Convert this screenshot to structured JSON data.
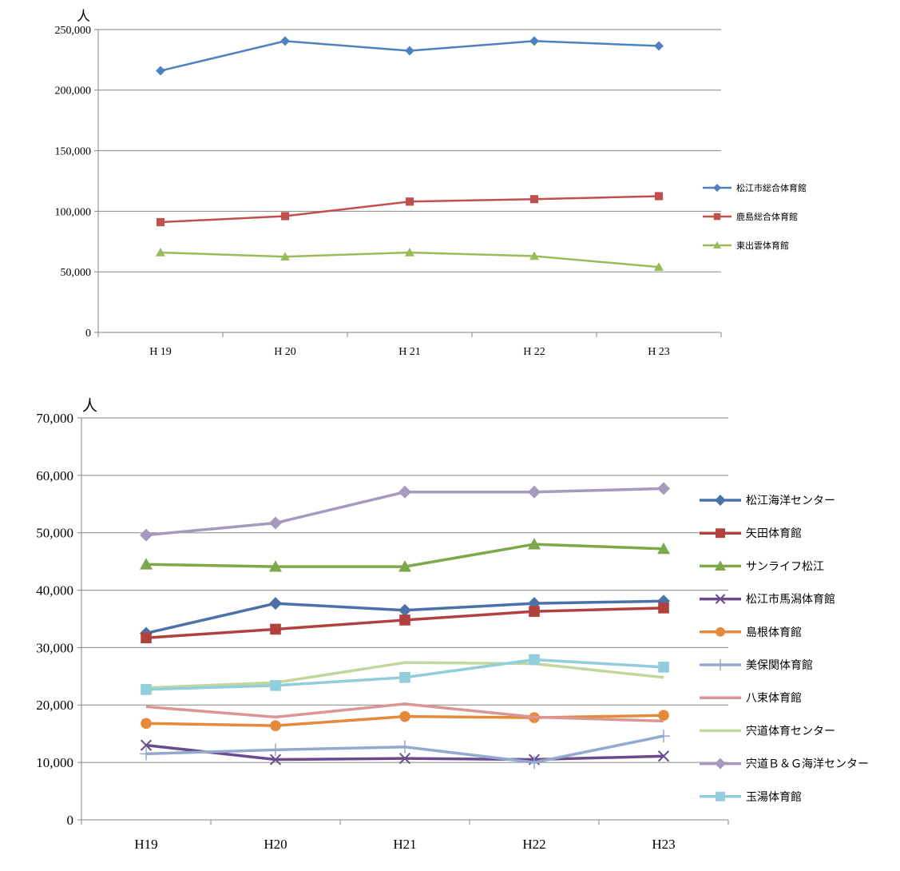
{
  "chart_data": [
    {
      "type": "line",
      "unit_label": "人",
      "categories": [
        "H19",
        "H20",
        "H21",
        "H22",
        "H23"
      ],
      "tick_labels": [
        "H 19",
        "H 20",
        "H 21",
        "H 22",
        "H 23"
      ],
      "ylim": [
        0,
        250000
      ],
      "yticks": [
        0,
        50000,
        100000,
        150000,
        200000,
        250000
      ],
      "ytick_labels": [
        "0",
        "50,000",
        "100,000",
        "150,000",
        "200,000",
        "250,000"
      ],
      "grid": true,
      "legend_position": "right",
      "series": [
        {
          "name": "松江市総合体育館",
          "color": "#4f81bd",
          "marker": "diamond",
          "values": [
            216000,
            240500,
            232500,
            240500,
            236500
          ]
        },
        {
          "name": "鹿島総合体育館",
          "color": "#c0504d",
          "marker": "square",
          "values": [
            91000,
            96000,
            108000,
            110000,
            112500
          ]
        },
        {
          "name": "東出雲体育館",
          "color": "#9bbb59",
          "marker": "triangle",
          "values": [
            66000,
            62500,
            66000,
            63000,
            54000
          ]
        }
      ]
    },
    {
      "type": "line",
      "unit_label": "人",
      "categories": [
        "H19",
        "H20",
        "H21",
        "H22",
        "H23"
      ],
      "tick_labels": [
        "H19",
        "H20",
        "H21",
        "H22",
        "H23"
      ],
      "ylim": [
        0,
        70000
      ],
      "yticks": [
        0,
        10000,
        20000,
        30000,
        40000,
        50000,
        60000,
        70000
      ],
      "ytick_labels": [
        "0",
        "10,000",
        "20,000",
        "30,000",
        "40,000",
        "50,000",
        "60,000",
        "70,000"
      ],
      "grid": true,
      "legend_position": "right",
      "series": [
        {
          "name": "松江海洋センター",
          "color": "#4a72a8",
          "marker": "diamond",
          "values": [
            32500,
            37700,
            36500,
            37700,
            38100
          ]
        },
        {
          "name": "矢田体育館",
          "color": "#b0413e",
          "marker": "square",
          "values": [
            31700,
            33200,
            34800,
            36300,
            36900
          ]
        },
        {
          "name": "サンライフ松江",
          "color": "#7fa84a",
          "marker": "triangle",
          "values": [
            44500,
            44100,
            44100,
            48000,
            47200
          ]
        },
        {
          "name": "松江市馬潟体育館",
          "color": "#6a4c8c",
          "marker": "x",
          "values": [
            13000,
            10500,
            10700,
            10500,
            11100
          ]
        },
        {
          "name": "島根体育館",
          "color": "#e58a3a",
          "marker": "circle",
          "values": [
            16800,
            16400,
            18000,
            17800,
            18200
          ]
        },
        {
          "name": "美保関体育館",
          "color": "#93a9cf",
          "marker": "plus",
          "values": [
            11500,
            12200,
            12700,
            10000,
            14600
          ]
        },
        {
          "name": "八束体育館",
          "color": "#d99694",
          "marker": "none",
          "values": [
            19700,
            17900,
            20200,
            17900,
            17200
          ]
        },
        {
          "name": "宍道体育センター",
          "color": "#c3d69b",
          "marker": "none",
          "values": [
            23000,
            23900,
            27400,
            27200,
            24800
          ]
        },
        {
          "name": "宍道Ｂ＆Ｇ海洋センター",
          "color": "#a599bd",
          "marker": "diamond",
          "values": [
            49600,
            51700,
            57100,
            57100,
            57700
          ]
        },
        {
          "name": "玉湯体育館",
          "color": "#92cddc",
          "marker": "square",
          "values": [
            22700,
            23400,
            24800,
            27900,
            26600
          ]
        }
      ]
    }
  ]
}
